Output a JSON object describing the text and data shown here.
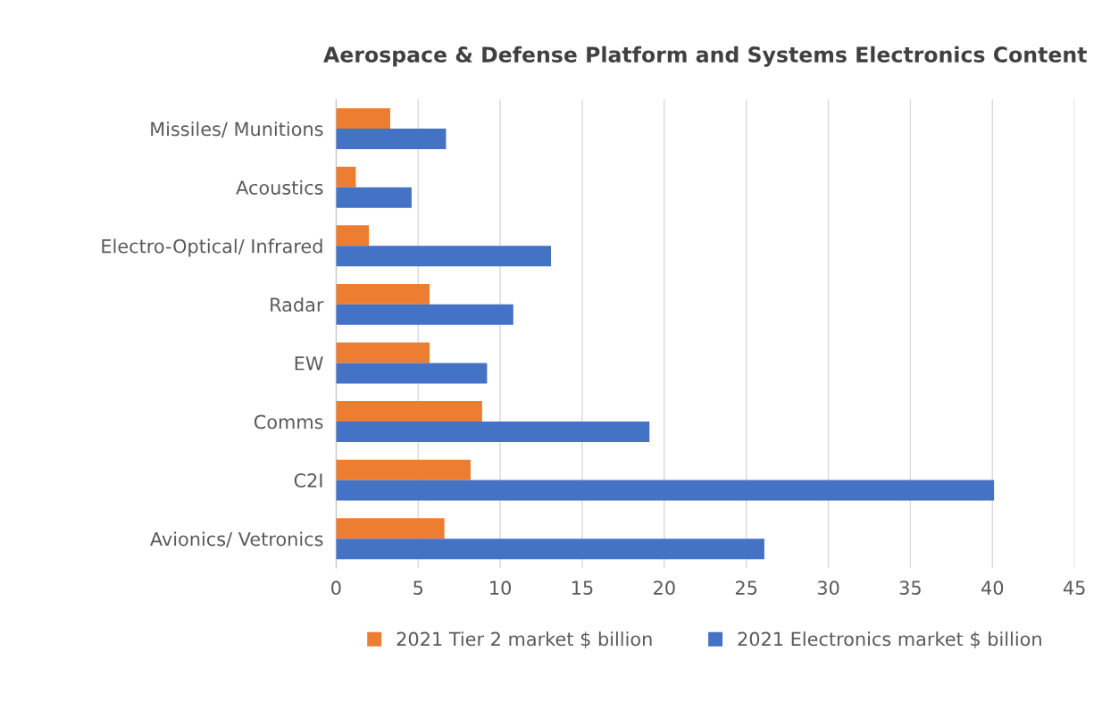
{
  "chart_data": {
    "type": "bar",
    "orientation": "horizontal",
    "title": "Aerospace & Defense Platform and Systems Electronics Content",
    "categories": [
      "Missiles/ Munitions",
      "Acoustics",
      "Electro-Optical/ Infrared",
      "Radar",
      "EW",
      "Comms",
      "C2I",
      "Avionics/ Vetronics"
    ],
    "series": [
      {
        "name": "2021 Tier 2 market $ billion",
        "color": "#ed7d31",
        "values": [
          3.3,
          1.2,
          2.0,
          5.7,
          5.7,
          8.9,
          8.2,
          6.6
        ]
      },
      {
        "name": "2021 Electronics market $ billion",
        "color": "#4472c4",
        "values": [
          6.7,
          4.6,
          13.1,
          10.8,
          9.2,
          19.1,
          40.1,
          26.1
        ]
      }
    ],
    "xlim": [
      0,
      45
    ],
    "xticks": [
      0,
      5,
      10,
      15,
      20,
      25,
      30,
      35,
      40,
      45
    ],
    "grid": "x",
    "legend": "bottom"
  }
}
